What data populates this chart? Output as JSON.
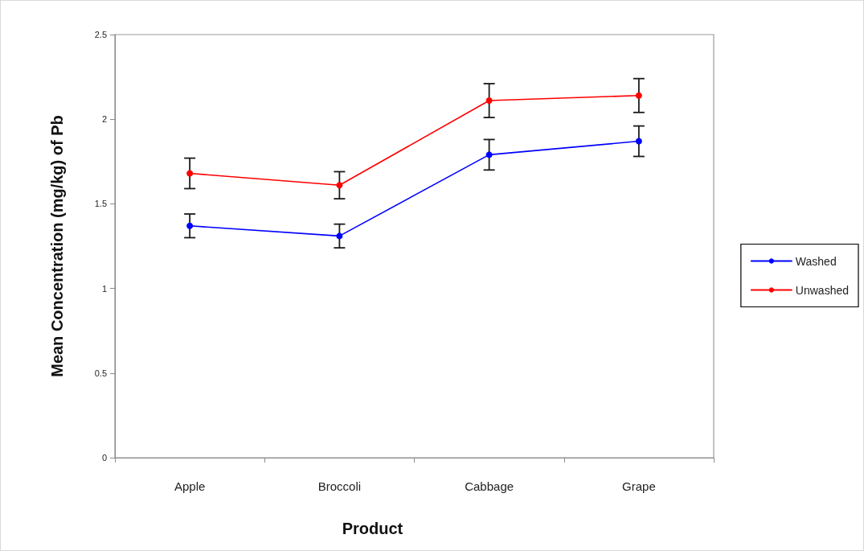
{
  "chart_data": {
    "type": "line",
    "xlabel": "Product",
    "ylabel": "Mean Concentration (mg/kg) of Pb",
    "categories": [
      "Apple",
      "Broccoli",
      "Cabbage",
      "Grape"
    ],
    "series": [
      {
        "name": "Washed",
        "color": "#0000ff",
        "values": [
          1.37,
          1.31,
          1.79,
          1.87
        ],
        "errors": [
          0.07,
          0.07,
          0.09,
          0.09
        ]
      },
      {
        "name": "Unwashed",
        "color": "#ff0000",
        "values": [
          1.68,
          1.61,
          2.11,
          2.14
        ],
        "errors": [
          0.09,
          0.08,
          0.1,
          0.1
        ]
      }
    ],
    "ylim": [
      0,
      2.5
    ],
    "yticks": [
      0,
      0.5,
      1,
      1.5,
      2,
      2.5
    ],
    "legend": "right",
    "marker": "circle",
    "line_style": "solid"
  }
}
